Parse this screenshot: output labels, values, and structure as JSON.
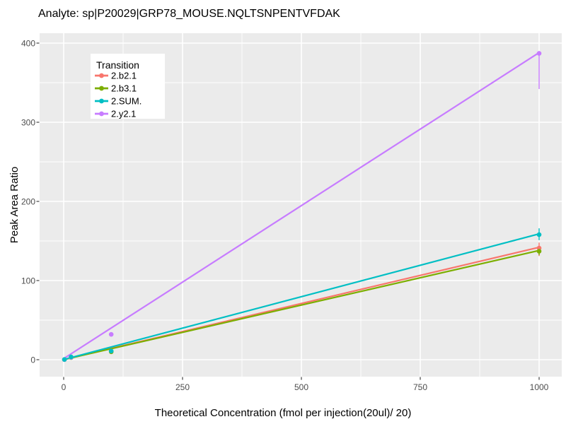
{
  "header": {
    "title": "Analyte: sp|P20029|GRP78_MOUSE.NQLTSNPENTVFDAK"
  },
  "chart_data": {
    "type": "line",
    "title": "Analyte: sp|P20029|GRP78_MOUSE.NQLTSNPENTVFDAK",
    "xlabel": "Theoretical Concentration (fmol per injection(20ul)/ 20)",
    "ylabel": "Peak Area Ratio",
    "xlim": [
      -50,
      1050
    ],
    "ylim": [
      -21,
      433
    ],
    "xticks": [
      0,
      250,
      500,
      750,
      1000
    ],
    "xtick_labels": [
      "0",
      "250",
      "500",
      "750",
      "1000"
    ],
    "yticks": [
      0,
      100,
      200,
      300,
      400
    ],
    "ytick_labels": [
      "0",
      "100",
      "200",
      "300",
      "400"
    ],
    "x_minor_ticks": [
      125,
      375,
      625,
      875
    ],
    "y_minor_ticks": [
      50,
      150,
      250,
      350
    ],
    "grid": "white major and minor gridlines on grey panel",
    "panel_bg": "#EBEBEB",
    "gridline_color": "#FFFFFF",
    "tick_text_color": "#4D4D4D",
    "legend": {
      "title": "Transition",
      "position": "inside-top-left",
      "bg": "#FFFFFF"
    },
    "x_points": [
      1.6,
      15.6,
      100,
      1000
    ],
    "series": [
      {
        "name": "2.b2.1",
        "color": "#F8766D",
        "points_y": [
          0.2,
          2.8,
          10.4,
          141
        ],
        "fit_line": {
          "x": [
            1.6,
            1000
          ],
          "y": [
            0.3,
            142
          ]
        },
        "errorbar": {
          "x": 1000,
          "lo": 131,
          "hi": 148
        }
      },
      {
        "name": "2.b3.1",
        "color": "#7CAE00",
        "points_y": [
          0.2,
          2.7,
          10.0,
          137
        ],
        "fit_line": {
          "x": [
            1.6,
            1000
          ],
          "y": [
            0.3,
            138
          ]
        },
        "errorbar": {
          "x": 1000,
          "lo": 132,
          "hi": 142
        }
      },
      {
        "name": "2.SUM.",
        "color": "#00BFC4",
        "points_y": [
          0.3,
          3.5,
          11.0,
          158
        ],
        "fit_line": {
          "x": [
            1.6,
            1000
          ],
          "y": [
            0.4,
            159
          ]
        },
        "errorbar": {
          "x": 1000,
          "lo": 151,
          "hi": 166
        }
      },
      {
        "name": "2.y2.1",
        "color": "#C77CFF",
        "points_y": [
          0.2,
          3.0,
          32,
          387
        ],
        "fit_line": {
          "x": [
            1.6,
            1000
          ],
          "y": [
            2,
            388
          ]
        },
        "errorbar": {
          "x": 1000,
          "lo": 342,
          "hi": 390
        }
      }
    ],
    "point_draw_order": [
      0,
      1,
      3,
      2
    ]
  }
}
